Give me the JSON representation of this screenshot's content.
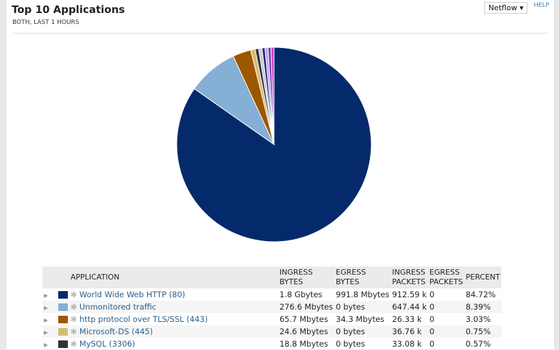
{
  "header": {
    "title": "Top 10 Applications",
    "subtitle": "BOTH, LAST 1 HOURS",
    "source_select": "Netflow ▾",
    "help": "HELP"
  },
  "table": {
    "headers": [
      "APPLICATION",
      "INGRESS BYTES",
      "EGRESS BYTES",
      "INGRESS PACKETS",
      "EGRESS PACKETS",
      "PERCENT"
    ],
    "rows": [
      {
        "app": "World Wide Web HTTP (80)",
        "color": "#052a6b",
        "ingress_bytes": "1.8 Gbytes",
        "egress_bytes": "991.8 Mbytes",
        "ingress_packets": "912.59 k",
        "egress_packets": "0",
        "percent": "84.72%"
      },
      {
        "app": "Unmonitored traffic",
        "color": "#85afd4",
        "ingress_bytes": "276.6 Mbytes",
        "egress_bytes": "0 bytes",
        "ingress_packets": "647.44 k",
        "egress_packets": "0",
        "percent": "8.39%"
      },
      {
        "app": "http protocol over TLS/SSL (443)",
        "color": "#9c5700",
        "ingress_bytes": "65.7 Mbytes",
        "egress_bytes": "34.3 Mbytes",
        "ingress_packets": "26.33 k",
        "egress_packets": "0",
        "percent": "3.03%"
      },
      {
        "app": "Microsoft-DS (445)",
        "color": "#d4bd72",
        "ingress_bytes": "24.6 Mbytes",
        "egress_bytes": "0 bytes",
        "ingress_packets": "36.76 k",
        "egress_packets": "0",
        "percent": "0.75%"
      },
      {
        "app": "MySQL (3306)",
        "color": "#333333",
        "ingress_bytes": "18.8 Mbytes",
        "egress_bytes": "0 bytes",
        "ingress_packets": "33.08 k",
        "egress_packets": "0",
        "percent": "0.57%"
      }
    ]
  },
  "chart_data": {
    "type": "pie",
    "start": "top",
    "direction": "clockwise",
    "values": [
      84.72,
      8.39,
      3.03,
      0.75,
      0.57,
      0.55,
      0.5,
      0.5,
      0.5,
      0.49
    ],
    "colors": [
      "#052a6b",
      "#85afd4",
      "#9c5700",
      "#d4bd72",
      "#333333",
      "#c8c8d8",
      "#2a2a7a",
      "#b8a8e8",
      "#7a3ab8",
      "#d040c8"
    ]
  }
}
